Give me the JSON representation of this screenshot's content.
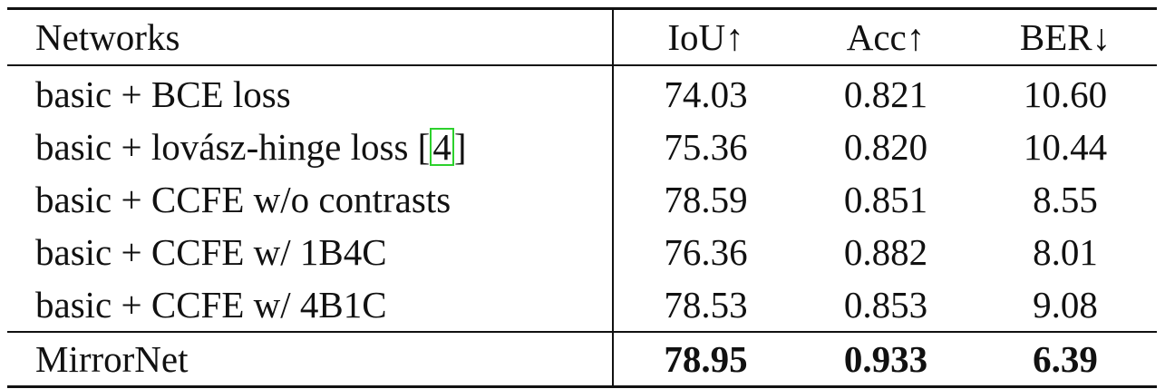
{
  "table": {
    "headers": [
      "Networks",
      "IoU↑",
      "Acc↑",
      "BER↓"
    ],
    "rows": [
      {
        "network": "basic + BCE loss",
        "iou": "74.03",
        "acc": "0.821",
        "ber": "10.60"
      },
      {
        "network": "basic + lovász-hinge loss [",
        "cite": "4",
        "network_suffix": "]",
        "iou": "75.36",
        "acc": "0.820",
        "ber": "10.44"
      },
      {
        "network": "basic + CCFE w/o contrasts",
        "iou": "78.59",
        "acc": "0.851",
        "ber": "8.55"
      },
      {
        "network": "basic + CCFE w/ 1B4C",
        "iou": "76.36",
        "acc": "0.882",
        "ber": "8.01"
      },
      {
        "network": "basic + CCFE w/ 4B1C",
        "iou": "78.53",
        "acc": "0.853",
        "ber": "9.08"
      },
      {
        "network": "MirrorNet",
        "iou": "78.95",
        "acc": "0.933",
        "ber": "6.39"
      }
    ],
    "citation_box_color": "#2dd12d"
  }
}
